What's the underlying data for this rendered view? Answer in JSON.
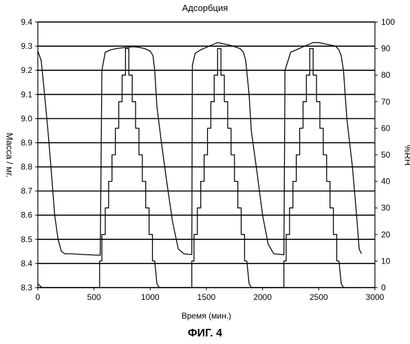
{
  "chart_data": {
    "type": "line",
    "title": "Адсорбция",
    "xlabel": "Время (мин.)",
    "ylabel_left": "Масса / мг.",
    "ylabel_right": "%RH",
    "xlim": [
      0,
      3000
    ],
    "ylim_left": [
      8.3,
      9.4
    ],
    "ylim_right": [
      0,
      100
    ],
    "x_ticks": [
      "0",
      "500",
      "1000",
      "1500",
      "2000",
      "2500",
      "3000"
    ],
    "y_left_ticks": [
      "8.3",
      "8.4",
      "8.5",
      "8.6",
      "8.7",
      "8.8",
      "8.9",
      "9.0",
      "9.1",
      "9.2",
      "9.3",
      "9.4"
    ],
    "y_right_ticks": [
      "0",
      "10",
      "20",
      "30",
      "40",
      "50",
      "60",
      "70",
      "80",
      "90",
      "100"
    ],
    "grid": "horizontal",
    "series": [
      {
        "axis": "left",
        "x": [
          0,
          30,
          60,
          90,
          120,
          150,
          180,
          210,
          240,
          300,
          400,
          500,
          555,
          570,
          600,
          650,
          700,
          750,
          800,
          850,
          900,
          950,
          1000,
          1025,
          1040,
          1060,
          1100,
          1150,
          1200,
          1250,
          1300,
          1340,
          1370,
          1375,
          1400,
          1450,
          1500,
          1550,
          1600,
          1650,
          1700,
          1750,
          1800,
          1830,
          1850,
          1880,
          1900,
          1950,
          2000,
          2050,
          2100,
          2150,
          2170,
          2180,
          2190,
          2200,
          2250,
          2300,
          2350,
          2400,
          2450,
          2500,
          2550,
          2600,
          2650,
          2680,
          2700,
          2720,
          2750,
          2800,
          2840,
          2860,
          2880
        ],
        "y": [
          9.28,
          9.24,
          9.1,
          8.95,
          8.78,
          8.6,
          8.5,
          8.45,
          8.44,
          8.44,
          8.437,
          8.435,
          8.434,
          9.2,
          9.275,
          9.285,
          9.29,
          9.293,
          9.295,
          9.298,
          9.295,
          9.29,
          9.28,
          9.26,
          9.2,
          9.05,
          8.9,
          8.73,
          8.57,
          8.46,
          8.44,
          8.438,
          8.437,
          9.22,
          9.27,
          9.285,
          9.295,
          9.305,
          9.315,
          9.31,
          9.305,
          9.298,
          9.29,
          9.275,
          9.24,
          9.1,
          8.95,
          8.78,
          8.6,
          8.48,
          8.44,
          8.438,
          8.437,
          8.436,
          8.436,
          9.2,
          9.275,
          9.285,
          9.295,
          9.305,
          9.315,
          9.315,
          9.31,
          9.305,
          9.3,
          9.285,
          9.26,
          9.2,
          9.0,
          8.8,
          8.58,
          8.46,
          8.44
        ]
      },
      {
        "axis": "right",
        "x": [
          0,
          15,
          30,
          40,
          550,
          550,
          570,
          570,
          600,
          600,
          630,
          630,
          660,
          660,
          690,
          690,
          720,
          720,
          750,
          750,
          780,
          780,
          810,
          810,
          840,
          840,
          870,
          870,
          900,
          900,
          930,
          930,
          960,
          960,
          990,
          990,
          1020,
          1020,
          1040,
          1060,
          1080,
          1370,
          1370,
          1390,
          1390,
          1420,
          1420,
          1450,
          1450,
          1480,
          1480,
          1510,
          1510,
          1540,
          1540,
          1570,
          1570,
          1600,
          1600,
          1630,
          1630,
          1660,
          1660,
          1690,
          1690,
          1720,
          1720,
          1750,
          1750,
          1780,
          1780,
          1810,
          1810,
          1840,
          1840,
          1860,
          1880,
          1900,
          2190,
          2190,
          2210,
          2210,
          2240,
          2240,
          2270,
          2270,
          2300,
          2300,
          2330,
          2330,
          2360,
          2360,
          2390,
          2390,
          2420,
          2420,
          2450,
          2450,
          2480,
          2480,
          2510,
          2510,
          2540,
          2540,
          2570,
          2570,
          2600,
          2600,
          2630,
          2630,
          2660,
          2660,
          2680,
          2700,
          2720
        ],
        "y": [
          1.5,
          0.8,
          0.2,
          0,
          0,
          10,
          10,
          20,
          20,
          30,
          30,
          40,
          40,
          50,
          50,
          60,
          60,
          70,
          70,
          80,
          80,
          90,
          90,
          80,
          80,
          70,
          70,
          60,
          60,
          50,
          50,
          40,
          40,
          30,
          30,
          20,
          20,
          10,
          10,
          1.5,
          0,
          0,
          10,
          10,
          20,
          20,
          30,
          30,
          40,
          40,
          50,
          50,
          60,
          60,
          70,
          70,
          80,
          80,
          90,
          90,
          80,
          80,
          70,
          70,
          60,
          60,
          50,
          50,
          40,
          40,
          30,
          30,
          20,
          20,
          10,
          10,
          1.5,
          0,
          0,
          10,
          10,
          20,
          20,
          30,
          30,
          40,
          40,
          50,
          50,
          60,
          60,
          70,
          70,
          80,
          80,
          90,
          90,
          80,
          80,
          70,
          70,
          60,
          60,
          50,
          50,
          40,
          40,
          30,
          30,
          20,
          20,
          10,
          10,
          1.5,
          0
        ]
      }
    ],
    "caption": "ФИГ. 4"
  }
}
